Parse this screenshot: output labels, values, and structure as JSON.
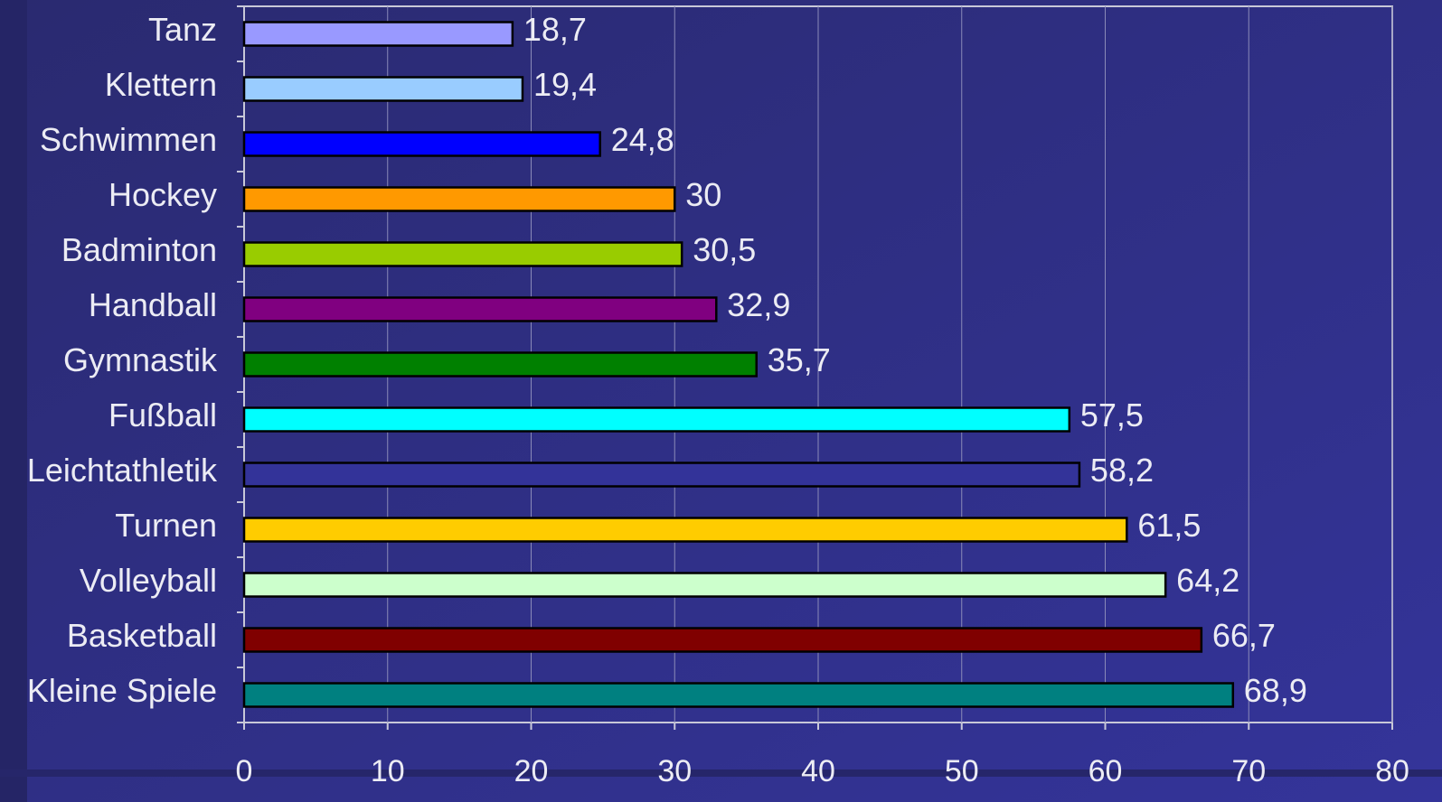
{
  "chart_data": {
    "type": "bar",
    "orientation": "horizontal",
    "categories": [
      "Tanz",
      "Klettern",
      "Schwimmen",
      "Hockey",
      "Badminton",
      "Handball",
      "Gymnastik",
      "Fußball",
      "Leichtathletik",
      "Turnen",
      "Volleyball",
      "Basketball",
      "Kleine Spiele"
    ],
    "values": [
      18.7,
      19.4,
      24.8,
      30,
      30.5,
      32.9,
      35.7,
      57.5,
      58.2,
      61.5,
      64.2,
      66.7,
      68.9
    ],
    "value_labels": [
      "18,7",
      "19,4",
      "24,8",
      "30",
      "30,5",
      "32,9",
      "35,7",
      "57,5",
      "58,2",
      "61,5",
      "64,2",
      "66,7",
      "68,9"
    ],
    "colors": [
      "#9999ff",
      "#99ccff",
      "#0000ff",
      "#ff9900",
      "#99cc00",
      "#800080",
      "#008000",
      "#00ffff",
      "#333399",
      "#ffcc00",
      "#ccffcc",
      "#800000",
      "#008080"
    ],
    "xlim": [
      0,
      80
    ],
    "xticks": [
      0,
      10,
      20,
      30,
      40,
      50,
      60,
      70,
      80
    ],
    "grid": true
  }
}
